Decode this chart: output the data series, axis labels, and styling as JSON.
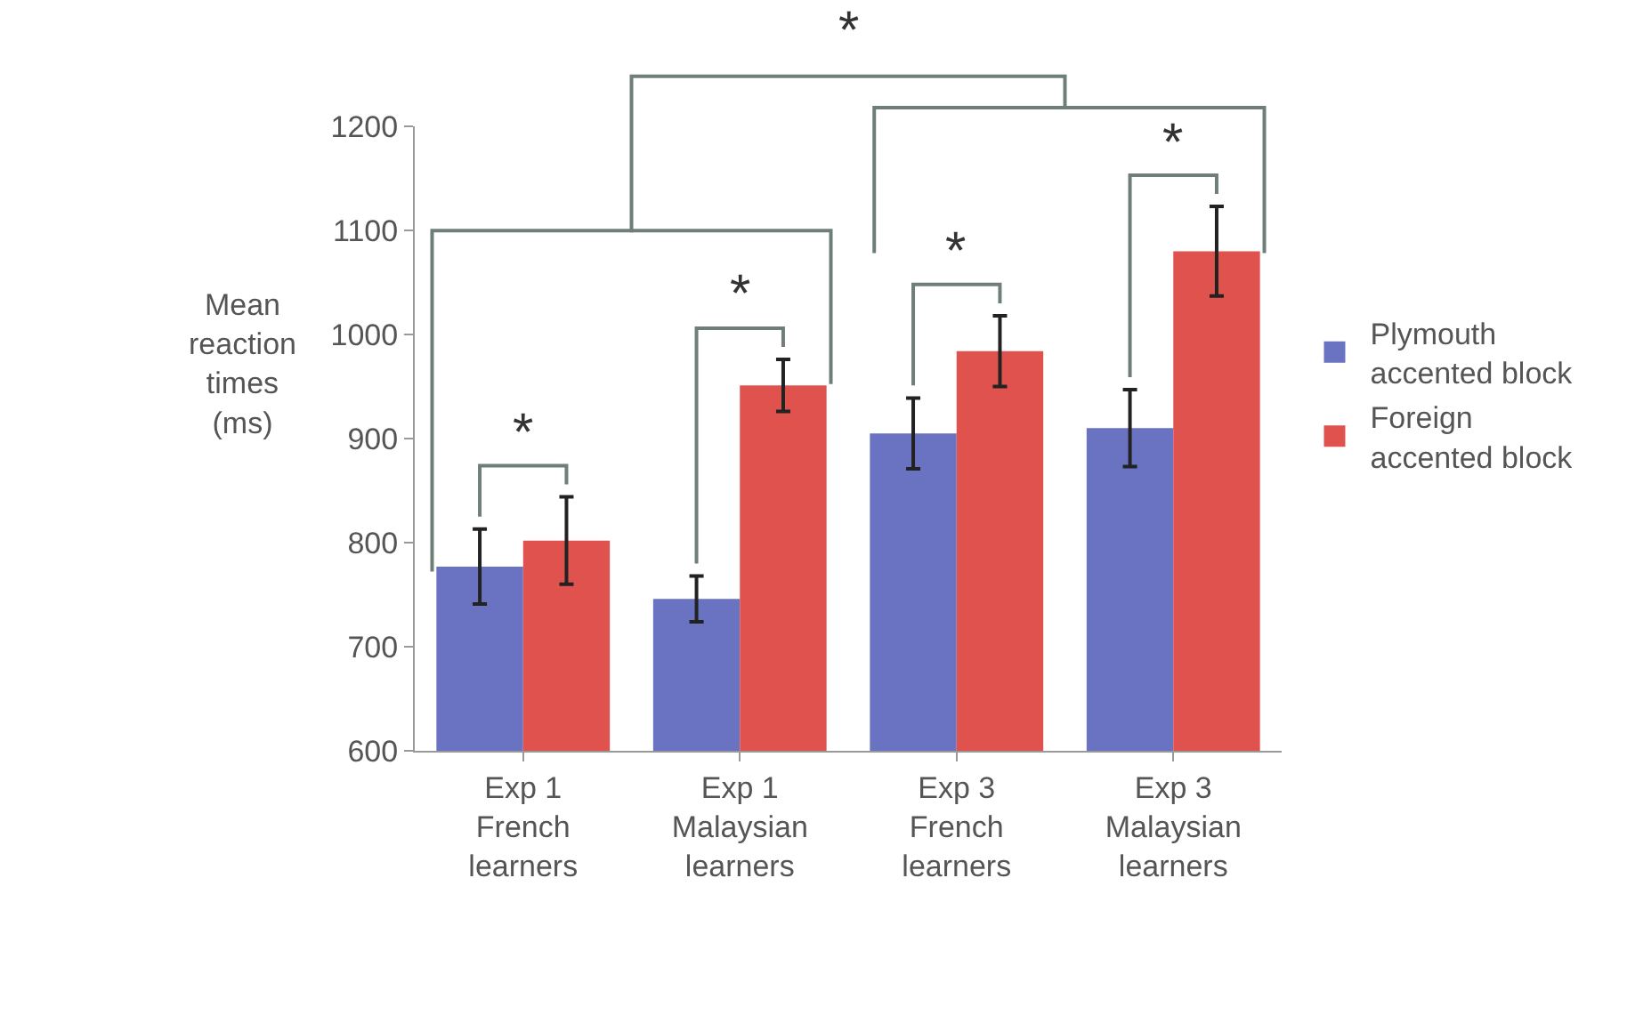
{
  "chart_data": {
    "type": "bar",
    "ylabel": "Mean\nreaction\ntimes\n(ms)",
    "categories": [
      "Exp 1\nFrench\nlearners",
      "Exp 1\nMalaysian\nlearners",
      "Exp 3\nFrench\nlearners",
      "Exp 3\nMalaysian\nlearners"
    ],
    "series": [
      {
        "name": "Plymouth\naccented block",
        "color": "#6a72c2",
        "values": [
          777,
          746,
          905,
          910
        ],
        "errors": [
          36,
          22,
          34,
          37
        ]
      },
      {
        "name": "Foreign\naccented block",
        "color": "#df524e",
        "values": [
          802,
          951,
          984,
          1080
        ],
        "errors": [
          42,
          25,
          34,
          43
        ]
      }
    ],
    "ylim": [
      600,
      1200
    ],
    "yticks": [
      600,
      700,
      800,
      900,
      1000,
      1100,
      1200
    ],
    "grid": false,
    "legend": "right",
    "annotations": [
      "*",
      "*",
      "*",
      "*",
      "*"
    ]
  }
}
